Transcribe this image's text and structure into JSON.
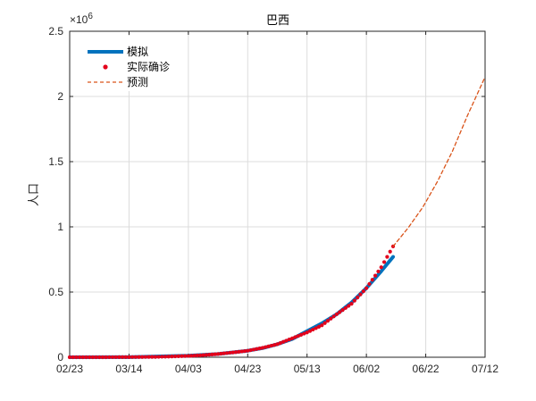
{
  "chart_data": {
    "type": "line",
    "title": "巴西",
    "xlabel": "",
    "ylabel": "人口",
    "y_exponent_label": "×10^6",
    "y_exponent_base": "×10",
    "y_exponent_power": "6",
    "x_ticks": [
      "02/23",
      "03/14",
      "04/03",
      "04/23",
      "05/13",
      "06/02",
      "06/22",
      "07/12"
    ],
    "y_ticks": [
      "0",
      "0.5",
      "1",
      "1.5",
      "2",
      "2.5"
    ],
    "ylim": [
      0,
      2.5
    ],
    "grid": true,
    "legend_position": "top-left",
    "series": [
      {
        "name": "模拟",
        "style": "solid-thick",
        "color": "#0072bd",
        "x": [
          "02/23",
          "03/14",
          "04/03",
          "04/13",
          "04/23",
          "04/28",
          "05/03",
          "05/08",
          "05/13",
          "05/18",
          "05/23",
          "05/28",
          "06/02",
          "06/07",
          "06/11"
        ],
        "values": [
          0.0,
          0.001,
          0.012,
          0.025,
          0.05,
          0.07,
          0.1,
          0.14,
          0.2,
          0.26,
          0.33,
          0.42,
          0.53,
          0.66,
          0.77
        ]
      },
      {
        "name": "实际确诊",
        "style": "dots",
        "color": "#e3001b",
        "x": [
          "02/23",
          "03/04",
          "03/14",
          "03/24",
          "04/03",
          "04/08",
          "04/13",
          "04/18",
          "04/23",
          "04/28",
          "05/03",
          "05/08",
          "05/13",
          "05/18",
          "05/23",
          "05/28",
          "06/02",
          "06/07",
          "06/11"
        ],
        "values": [
          0.0,
          0.0,
          0.001,
          0.003,
          0.01,
          0.016,
          0.025,
          0.037,
          0.05,
          0.072,
          0.1,
          0.145,
          0.19,
          0.245,
          0.33,
          0.41,
          0.53,
          0.69,
          0.85
        ]
      },
      {
        "name": "预测",
        "style": "dashed",
        "color": "#d95319",
        "x": [
          "06/11",
          "06/16",
          "06/21",
          "06/26",
          "07/01",
          "07/06",
          "07/12"
        ],
        "values": [
          0.85,
          0.99,
          1.15,
          1.35,
          1.58,
          1.85,
          2.15
        ]
      }
    ]
  }
}
